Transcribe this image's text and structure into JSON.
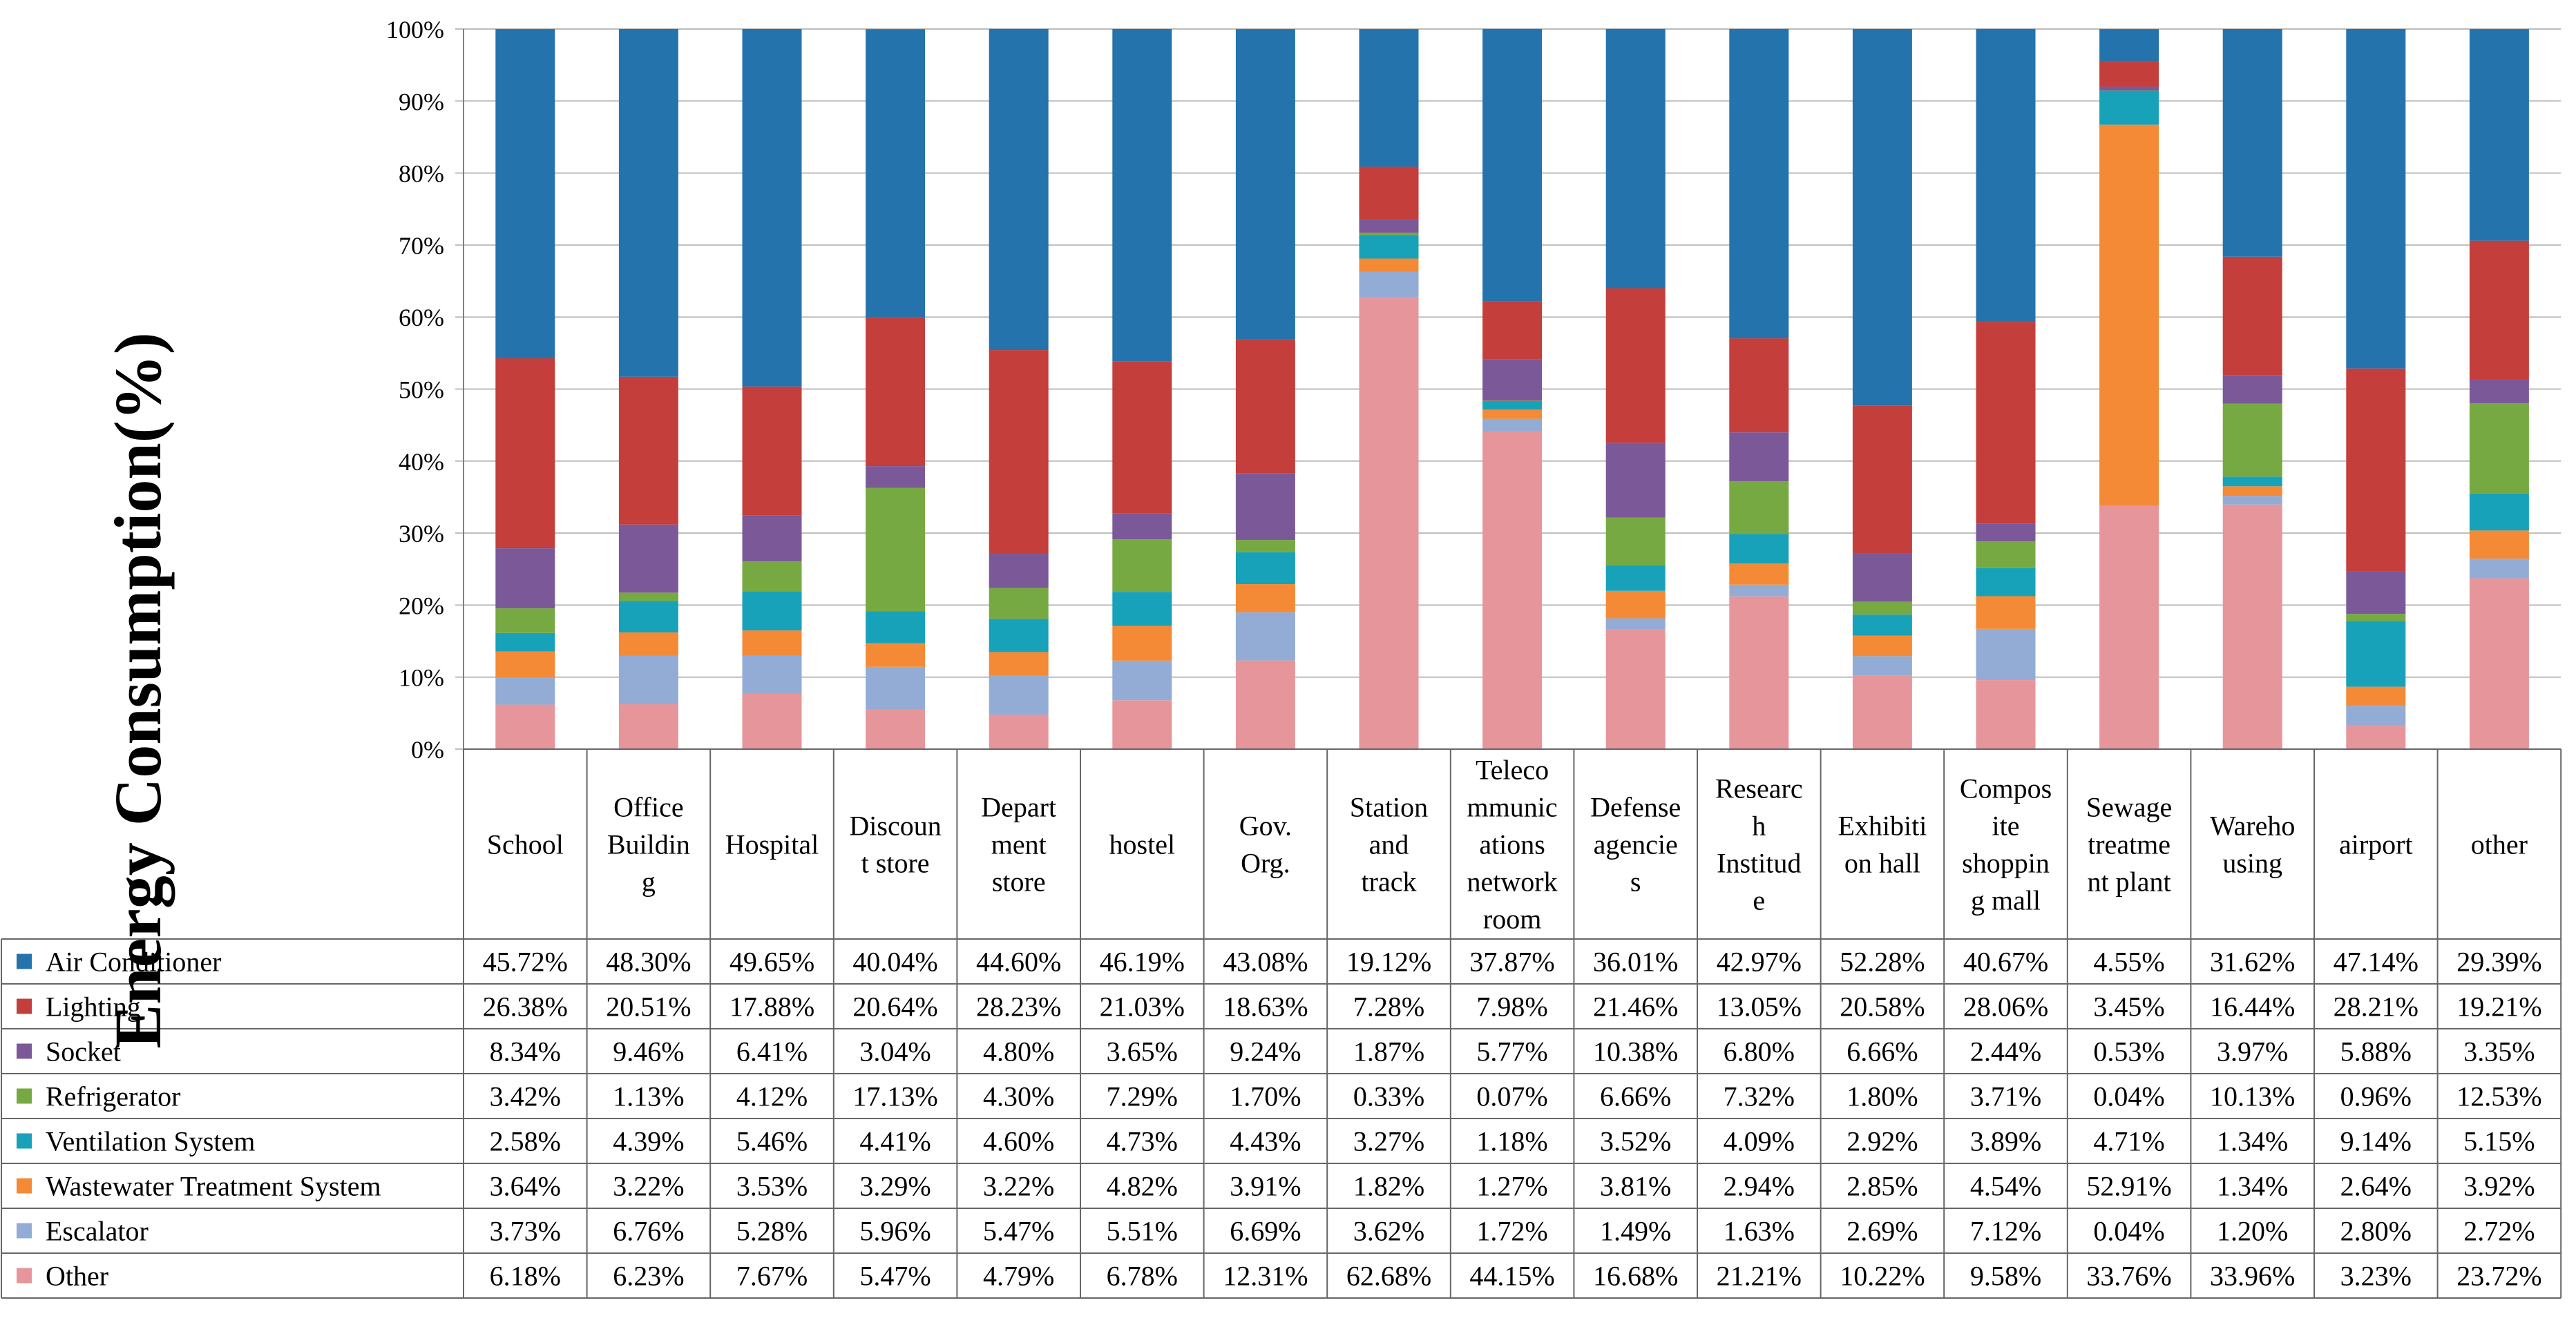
{
  "chart_data": {
    "type": "stacked-bar-100",
    "title": "",
    "ylabel": "Energy Consumption(%)",
    "xlabel": "",
    "ylim": [
      0,
      100
    ],
    "yticks": [
      "0%",
      "10%",
      "20%",
      "30%",
      "40%",
      "50%",
      "60%",
      "70%",
      "80%",
      "90%",
      "100%"
    ],
    "categories": [
      "School",
      "Office Building",
      "Hospital",
      "Discount store",
      "Department store",
      "hostel",
      "Gov. Org.",
      "Station and track",
      "Telecommunications network room",
      "Defense agencies",
      "Research Institude",
      "Exhibition hall",
      "Composite shopping mall",
      "Sewage treatment plant",
      "Warehousing",
      "airport",
      "other"
    ],
    "category_lines": [
      [
        "School"
      ],
      [
        "Office",
        "Buildin",
        "g"
      ],
      [
        "Hospital"
      ],
      [
        "Discoun",
        "t store"
      ],
      [
        "Depart",
        "ment",
        "store"
      ],
      [
        "hostel"
      ],
      [
        "Gov.",
        "Org."
      ],
      [
        "Station",
        "and",
        "track"
      ],
      [
        "Teleco",
        "mmunic",
        "ations",
        "network",
        "room"
      ],
      [
        "Defense",
        "agencie",
        "s"
      ],
      [
        "Researc",
        "h",
        "Institud",
        "e"
      ],
      [
        "Exhibiti",
        "on hall"
      ],
      [
        "Compos",
        "ite",
        "shoppin",
        "g mall"
      ],
      [
        "Sewage",
        "treatme",
        "nt plant"
      ],
      [
        "Wareho",
        "using"
      ],
      [
        "airport"
      ],
      [
        "other"
      ]
    ],
    "series": [
      {
        "name": "Other",
        "color": "#e6969a",
        "values": [
          6.18,
          6.23,
          7.67,
          5.47,
          4.79,
          6.78,
          12.31,
          62.68,
          44.15,
          16.68,
          21.21,
          10.22,
          9.58,
          33.76,
          33.96,
          3.23,
          23.72
        ],
        "labels": [
          "6.18%",
          "6.23%",
          "7.67%",
          "5.47%",
          "4.79%",
          "6.78%",
          "12.31%",
          "62.68%",
          "44.15%",
          "16.68%",
          "21.21%",
          "10.22%",
          "9.58%",
          "33.76%",
          "33.96%",
          "3.23%",
          "23.72%"
        ]
      },
      {
        "name": "Escalator",
        "color": "#93acd6",
        "values": [
          3.73,
          6.76,
          5.28,
          5.96,
          5.47,
          5.51,
          6.69,
          3.62,
          1.72,
          1.49,
          1.63,
          2.69,
          7.12,
          0.04,
          1.2,
          2.8,
          2.72
        ],
        "labels": [
          "3.73%",
          "6.76%",
          "5.28%",
          "5.96%",
          "5.47%",
          "5.51%",
          "6.69%",
          "3.62%",
          "1.72%",
          "1.49%",
          "1.63%",
          "2.69%",
          "7.12%",
          "0.04%",
          "1.20%",
          "2.80%",
          "2.72%"
        ]
      },
      {
        "name": "Wastewater Treatment System",
        "color": "#f48a35",
        "values": [
          3.64,
          3.22,
          3.53,
          3.29,
          3.22,
          4.82,
          3.91,
          1.82,
          1.27,
          3.81,
          2.94,
          2.85,
          4.54,
          52.91,
          1.34,
          2.64,
          3.92
        ],
        "labels": [
          "3.64%",
          "3.22%",
          "3.53%",
          "3.29%",
          "3.22%",
          "4.82%",
          "3.91%",
          "1.82%",
          "1.27%",
          "3.81%",
          "2.94%",
          "2.85%",
          "4.54%",
          "52.91%",
          "1.34%",
          "2.64%",
          "3.92%"
        ]
      },
      {
        "name": "Ventilation System",
        "color": "#18a2b9",
        "values": [
          2.58,
          4.39,
          5.46,
          4.41,
          4.6,
          4.73,
          4.43,
          3.27,
          1.18,
          3.52,
          4.09,
          2.92,
          3.89,
          4.71,
          1.34,
          9.14,
          5.15
        ],
        "labels": [
          "2.58%",
          "4.39%",
          "5.46%",
          "4.41%",
          "4.60%",
          "4.73%",
          "4.43%",
          "3.27%",
          "1.18%",
          "3.52%",
          "4.09%",
          "2.92%",
          "3.89%",
          "4.71%",
          "1.34%",
          "9.14%",
          "5.15%"
        ]
      },
      {
        "name": "Refrigerator",
        "color": "#77a942",
        "values": [
          3.42,
          1.13,
          4.12,
          17.13,
          4.3,
          7.29,
          1.7,
          0.33,
          0.07,
          6.66,
          7.32,
          1.8,
          3.71,
          0.04,
          10.13,
          0.96,
          12.53
        ],
        "labels": [
          "3.42%",
          "1.13%",
          "4.12%",
          "17.13%",
          "4.30%",
          "7.29%",
          "1.70%",
          "0.33%",
          "0.07%",
          "6.66%",
          "7.32%",
          "1.80%",
          "3.71%",
          "0.04%",
          "10.13%",
          "0.96%",
          "12.53%"
        ]
      },
      {
        "name": "Socket",
        "color": "#7b5999",
        "values": [
          8.34,
          9.46,
          6.41,
          3.04,
          4.8,
          3.65,
          9.24,
          1.87,
          5.77,
          10.38,
          6.8,
          6.66,
          2.44,
          0.53,
          3.97,
          5.88,
          3.35
        ],
        "labels": [
          "8.34%",
          "9.46%",
          "6.41%",
          "3.04%",
          "4.80%",
          "3.65%",
          "9.24%",
          "1.87%",
          "5.77%",
          "10.38%",
          "6.80%",
          "6.66%",
          "2.44%",
          "0.53%",
          "3.97%",
          "5.88%",
          "3.35%"
        ]
      },
      {
        "name": "Lighting",
        "color": "#c43e3c",
        "values": [
          26.38,
          20.51,
          17.88,
          20.64,
          28.23,
          21.03,
          18.63,
          7.28,
          7.98,
          21.46,
          13.05,
          20.58,
          28.06,
          3.45,
          16.44,
          28.21,
          19.21
        ],
        "labels": [
          "26.38%",
          "20.51%",
          "17.88%",
          "20.64%",
          "28.23%",
          "21.03%",
          "18.63%",
          "7.28%",
          "7.98%",
          "21.46%",
          "13.05%",
          "20.58%",
          "28.06%",
          "3.45%",
          "16.44%",
          "28.21%",
          "19.21%"
        ]
      },
      {
        "name": "Air Conditioner",
        "color": "#2573ac",
        "values": [
          45.72,
          48.3,
          49.65,
          40.04,
          44.6,
          46.19,
          43.08,
          19.12,
          37.87,
          36.01,
          42.97,
          52.28,
          40.67,
          4.55,
          31.62,
          47.14,
          29.39
        ],
        "labels": [
          "45.72%",
          "48.30%",
          "49.65%",
          "40.04%",
          "44.60%",
          "46.19%",
          "43.08%",
          "19.12%",
          "37.87%",
          "36.01%",
          "42.97%",
          "52.28%",
          "40.67%",
          "4.55%",
          "31.62%",
          "47.14%",
          "29.39%"
        ]
      }
    ],
    "legend_placement": "data-table-left",
    "grid": true
  }
}
